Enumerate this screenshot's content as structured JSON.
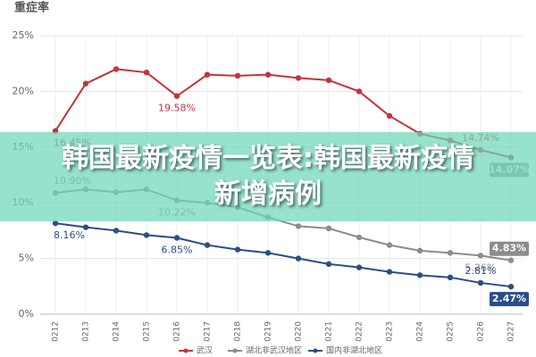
{
  "chart_data": {
    "type": "line",
    "title": "重症率",
    "categories": [
      "0212",
      "0213",
      "0214",
      "0215",
      "0216",
      "0217",
      "0218",
      "0219",
      "0220",
      "0221",
      "0222",
      "0223",
      "0224",
      "0225",
      "0226",
      "0227"
    ],
    "series": [
      {
        "name": "武汉",
        "color": "#c8313b",
        "values": [
          16.45,
          20.7,
          22.0,
          21.7,
          19.58,
          21.5,
          21.4,
          21.5,
          21.2,
          21.0,
          20.0,
          17.8,
          16.2,
          15.6,
          14.74,
          14.07
        ],
        "value_labels": [
          "16.45%",
          null,
          null,
          null,
          "19.58%",
          null,
          null,
          null,
          null,
          null,
          null,
          null,
          null,
          null,
          "14.74%",
          "14.07%"
        ]
      },
      {
        "name": "湖北非武汉地区",
        "color": "#8c8c8c",
        "values": [
          10.9,
          11.2,
          10.95,
          11.2,
          10.22,
          10.0,
          9.6,
          8.7,
          7.9,
          7.7,
          6.9,
          6.2,
          5.7,
          5.5,
          5.26,
          4.83
        ],
        "value_labels": [
          "10.90%",
          null,
          null,
          null,
          "10.22%",
          null,
          null,
          null,
          null,
          null,
          null,
          null,
          null,
          null,
          "5.26%",
          "4.83%"
        ]
      },
      {
        "name": "国内非湖北地区",
        "color": "#2a4f86",
        "values": [
          8.16,
          7.8,
          7.5,
          7.1,
          6.85,
          6.2,
          5.8,
          5.5,
          5.0,
          4.5,
          4.2,
          3.8,
          3.5,
          3.3,
          2.81,
          2.47
        ],
        "value_labels": [
          "8.16%",
          null,
          null,
          null,
          "6.85%",
          null,
          null,
          null,
          null,
          null,
          null,
          null,
          null,
          null,
          "2.81%",
          "2.47%"
        ]
      }
    ],
    "ylim": [
      0,
      25
    ],
    "yticks": [
      {
        "value": 0,
        "label": "0%"
      },
      {
        "value": 5,
        "label": "5%"
      },
      {
        "value": 10,
        "label": "10%"
      },
      {
        "value": 15,
        "label": "15%"
      },
      {
        "value": 20,
        "label": "20%"
      },
      {
        "value": 25,
        "label": "25%"
      }
    ],
    "grid": true,
    "legend": "bottom"
  },
  "banner": "韩国最新疫情一览表:韩国最新疫情新增病例"
}
